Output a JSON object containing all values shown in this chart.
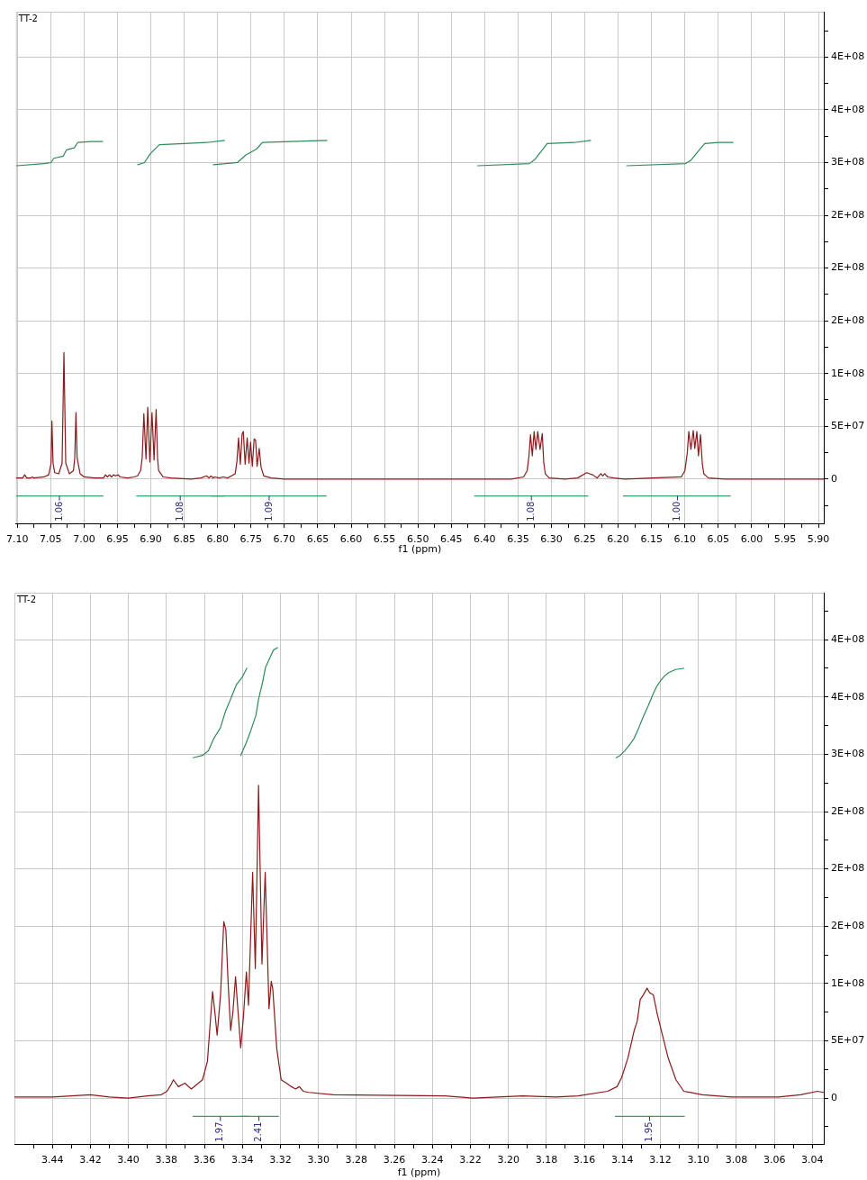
{
  "chart_data": [
    {
      "type": "line",
      "title": "TT-2",
      "xlabel": "f1 (ppm)",
      "grid": true,
      "xlim": [
        7.102,
        5.892
      ],
      "ylim": [
        -42000000.0,
        443000000.0
      ],
      "xticks": [
        {
          "value": 7.1,
          "label": "7.10"
        },
        {
          "value": 7.075,
          "label": null
        },
        {
          "value": 7.05,
          "label": "7.05"
        },
        {
          "value": 7.025,
          "label": null
        },
        {
          "value": 7.0,
          "label": "7.00"
        },
        {
          "value": 6.975,
          "label": null
        },
        {
          "value": 6.95,
          "label": "6.95"
        },
        {
          "value": 6.925,
          "label": null
        },
        {
          "value": 6.9,
          "label": "6.90"
        },
        {
          "value": 6.875,
          "label": null
        },
        {
          "value": 6.85,
          "label": "6.85"
        },
        {
          "value": 6.825,
          "label": null
        },
        {
          "value": 6.8,
          "label": "6.80"
        },
        {
          "value": 6.775,
          "label": null
        },
        {
          "value": 6.75,
          "label": "6.75"
        },
        {
          "value": 6.725,
          "label": null
        },
        {
          "value": 6.7,
          "label": "6.70"
        },
        {
          "value": 6.675,
          "label": null
        },
        {
          "value": 6.65,
          "label": "6.65"
        },
        {
          "value": 6.625,
          "label": null
        },
        {
          "value": 6.6,
          "label": "6.60"
        },
        {
          "value": 6.575,
          "label": null
        },
        {
          "value": 6.55,
          "label": "6.55"
        },
        {
          "value": 6.525,
          "label": null
        },
        {
          "value": 6.5,
          "label": "6.50"
        },
        {
          "value": 6.475,
          "label": null
        },
        {
          "value": 6.45,
          "label": "6.45"
        },
        {
          "value": 6.425,
          "label": null
        },
        {
          "value": 6.4,
          "label": "6.40"
        },
        {
          "value": 6.375,
          "label": null
        },
        {
          "value": 6.35,
          "label": "6.35"
        },
        {
          "value": 6.325,
          "label": null
        },
        {
          "value": 6.3,
          "label": "6.30"
        },
        {
          "value": 6.275,
          "label": null
        },
        {
          "value": 6.25,
          "label": "6.25"
        },
        {
          "value": 6.225,
          "label": null
        },
        {
          "value": 6.2,
          "label": "6.20"
        },
        {
          "value": 6.175,
          "label": null
        },
        {
          "value": 6.15,
          "label": "6.15"
        },
        {
          "value": 6.125,
          "label": null
        },
        {
          "value": 6.1,
          "label": "6.10"
        },
        {
          "value": 6.075,
          "label": null
        },
        {
          "value": 6.05,
          "label": "6.05"
        },
        {
          "value": 6.025,
          "label": null
        },
        {
          "value": 6.0,
          "label": "6.00"
        },
        {
          "value": 5.975,
          "label": null
        },
        {
          "value": 5.95,
          "label": "5.95"
        },
        {
          "value": 5.925,
          "label": null
        },
        {
          "value": 5.9,
          "label": "5.90"
        }
      ],
      "yticks": [
        {
          "value": -25000000.0,
          "label": null
        },
        0,
        {
          "value": 25000000.0,
          "label": null
        },
        {
          "value": 50000000.0,
          "label": "5E+07"
        },
        {
          "value": 75000000.0,
          "label": null
        },
        {
          "value": 100000000.0,
          "label": "1E+08"
        },
        {
          "value": 125000000.0,
          "label": null
        },
        {
          "value": 150000000.0,
          "label": "2E+08"
        },
        {
          "value": 175000000.0,
          "label": null
        },
        {
          "value": 200000000.0,
          "label": "2E+08"
        },
        {
          "value": 225000000.0,
          "label": null
        },
        {
          "value": 250000000.0,
          "label": "2E+08"
        },
        {
          "value": 275000000.0,
          "label": null
        },
        {
          "value": 300000000.0,
          "label": "3E+08"
        },
        {
          "value": 325000000.0,
          "label": null
        },
        {
          "value": 350000000.0,
          "label": "4E+08"
        },
        {
          "value": 375000000.0,
          "label": null
        },
        {
          "value": 400000000.0,
          "label": "4E+08"
        },
        {
          "value": 425000000.0,
          "label": null
        }
      ],
      "series": [
        {
          "type": "line",
          "color": "#8b1a1a",
          "x": [
            7.102,
            7.092,
            7.089,
            7.086,
            7.08,
            7.078,
            7.075,
            7.06,
            7.053,
            7.0495,
            7.0482,
            7.0465,
            7.044,
            7.038,
            7.033,
            7.0302,
            7.0275,
            7.022,
            7.016,
            7.014,
            7.0122,
            7.0105,
            7.006,
            7.0,
            6.985,
            6.971,
            6.968,
            6.965,
            6.962,
            6.959,
            6.956,
            6.953,
            6.949,
            6.946,
            6.935,
            6.925,
            6.92,
            6.9154,
            6.913,
            6.9105,
            6.9073,
            6.9047,
            6.9015,
            6.8983,
            6.8952,
            6.8921,
            6.89,
            6.8884,
            6.8817,
            6.87,
            6.84,
            6.825,
            6.8165,
            6.813,
            6.8097,
            6.807,
            6.8043,
            6.798,
            6.7917,
            6.785,
            6.7737,
            6.771,
            6.7687,
            6.766,
            6.7633,
            6.7615,
            6.7588,
            6.7557,
            6.753,
            6.7507,
            6.748,
            6.7453,
            6.7431,
            6.7409,
            6.7377,
            6.7349,
            6.7309,
            6.7197,
            6.7,
            6.6,
            6.5,
            6.4,
            6.36,
            6.3417,
            6.3363,
            6.3336,
            6.3313,
            6.3286,
            6.3259,
            6.3232,
            6.3205,
            6.317,
            6.3137,
            6.3115,
            6.3092,
            6.3034,
            6.28,
            6.2607,
            6.2472,
            6.2427,
            6.2381,
            6.2314,
            6.226,
            6.223,
            6.2202,
            6.2157,
            6.2067,
            6.19,
            6.1054,
            6.1,
            6.0964,
            6.0942,
            6.091,
            6.0875,
            6.0852,
            6.0821,
            6.0798,
            6.0767,
            6.0739,
            6.0717,
            6.0649,
            6.04,
            5.95,
            5.892
          ],
          "values": [
            1000000.0,
            1000000.0,
            4000000.0,
            1000000.0,
            1000000.0,
            2000000.0,
            1000000.0,
            2000000.0,
            4000000.0,
            15000000.0,
            55000000.0,
            15000000.0,
            6000000.0,
            5000000.0,
            15000000.0,
            120000000.0,
            15000000.0,
            5000000.0,
            8000000.0,
            20000000.0,
            63000000.0,
            20000000.0,
            5000000.0,
            2000000.0,
            1000000.0,
            1000000.0,
            4000000.0,
            2000000.0,
            4000000.0,
            2000000.0,
            4000000.0,
            3000000.0,
            4000000.0,
            2000000.0,
            1000000.0,
            2000000.0,
            3000000.0,
            8000000.0,
            20000000.0,
            62000000.0,
            19000000.0,
            68000000.0,
            16000000.0,
            63000000.0,
            18000000.0,
            66000000.0,
            20000000.0,
            8000000.0,
            2000000.0,
            1000000.0,
            0,
            1000000.0,
            3000000.0,
            1000000.0,
            3000000.0,
            1000000.0,
            2000000.0,
            1000000.0,
            2000000.0,
            1000000.0,
            5000000.0,
            17000000.0,
            39000000.0,
            14000000.0,
            43000000.0,
            45000000.0,
            14000000.0,
            39000000.0,
            15000000.0,
            35000000.0,
            12000000.0,
            38000000.0,
            37000000.0,
            12000000.0,
            29000000.0,
            11000000.0,
            3000000.0,
            1000000.0,
            0,
            0,
            0,
            0,
            0,
            2000000.0,
            8000000.0,
            22000000.0,
            42000000.0,
            22000000.0,
            45000000.0,
            28000000.0,
            45000000.0,
            28000000.0,
            43000000.0,
            16000000.0,
            5000000.0,
            1000000.0,
            0,
            1000000.0,
            6000000.0,
            5000000.0,
            4000000.0,
            1000000.0,
            5000000.0,
            3000000.0,
            5000000.0,
            2000000.0,
            1000000.0,
            0,
            2000000.0,
            8000000.0,
            25000000.0,
            45000000.0,
            28000000.0,
            46000000.0,
            29000000.0,
            45000000.0,
            22000000.0,
            42000000.0,
            14000000.0,
            5000000.0,
            1000000.0,
            0,
            0,
            0
          ]
        },
        {
          "type": "line",
          "color": "#2e8b57",
          "x": [
            7.101,
            7.06,
            7.0496,
            7.0456,
            7.0314,
            7.0264,
            7.0147,
            7.0097,
            6.99,
            6.9722
          ],
          "values": [
            297000000.0,
            299000000.0,
            300000000.0,
            304000000.0,
            306000000.0,
            312000000.0,
            314000000.0,
            319000000.0,
            320000000.0,
            320000000.0
          ]
        },
        {
          "type": "line",
          "color": "#2e8b57",
          "x": [
            6.9196,
            6.9096,
            6.9014,
            6.8872,
            6.8497,
            6.8163,
            6.7898
          ],
          "values": [
            298000000.0,
            300000000.0,
            308000000.0,
            317000000.0,
            318000000.0,
            319000000.0,
            321000000.0
          ]
        },
        {
          "type": "line",
          "color": "#2e8b57",
          "x": [
            6.8064,
            6.7706,
            6.758,
            6.7413,
            6.733,
            6.6913,
            6.6364
          ],
          "values": [
            298000000.0,
            300000000.0,
            307000000.0,
            313000000.0,
            319000000.0,
            320000000.0,
            321000000.0
          ]
        },
        {
          "type": "line",
          "color": "#2e8b57",
          "x": [
            6.4105,
            6.333,
            6.3247,
            6.3063,
            6.2663,
            6.2413
          ],
          "values": [
            297000000.0,
            299000000.0,
            303000000.0,
            318000000.0,
            319000000.0,
            321000000.0
          ]
        },
        {
          "type": "line",
          "color": "#2e8b57",
          "x": [
            6.1872,
            6.0996,
            6.0914,
            6.0705,
            6.0496,
            6.0281
          ],
          "values": [
            297000000.0,
            299000000.0,
            302000000.0,
            318000000.0,
            319000000.0,
            319000000.0
          ]
        },
        {
          "type": "line",
          "color": "#3c9e5e",
          "x": [
            7.102,
            6.9717
          ],
          "values": [
            -16000000.0,
            -16000000.0
          ]
        },
        {
          "type": "line",
          "color": "#3c9e5e",
          "x": [
            6.9213,
            6.7908
          ],
          "values": [
            -16000000.0,
            -16000000.0
          ]
        },
        {
          "type": "line",
          "color": "#3c9e5e",
          "x": [
            6.8088,
            6.6373
          ],
          "values": [
            -16000000.0,
            -16000000.0
          ]
        },
        {
          "type": "line",
          "color": "#3c9e5e",
          "x": [
            6.415,
            6.2454
          ],
          "values": [
            -16000000.0,
            -16000000.0
          ]
        },
        {
          "type": "line",
          "color": "#3c9e5e",
          "x": [
            6.1922,
            6.0321
          ],
          "values": [
            -16000000.0,
            -16000000.0
          ]
        }
      ],
      "annotations": [
        {
          "text": "1.06",
          "x": 7.037,
          "y": -16000000.0
        },
        {
          "text": "1.08",
          "x": 6.856,
          "y": -16000000.0
        },
        {
          "text": "1.09",
          "x": 6.7228,
          "y": -16000000.0
        },
        {
          "text": "1.08",
          "x": 6.33,
          "y": -16000000.0
        },
        {
          "text": "1.00",
          "x": 6.1112,
          "y": -16000000.0
        }
      ]
    },
    {
      "type": "line",
      "title": "TT-2",
      "xlabel": "f1 (ppm)",
      "grid": true,
      "xlim": [
        3.46,
        3.034
      ],
      "ylim": [
        -40000000.0,
        441000000.0
      ],
      "xticks": [
        {
          "value": 3.45,
          "label": null
        },
        {
          "value": 3.44,
          "label": "3.44"
        },
        {
          "value": 3.43,
          "label": null
        },
        {
          "value": 3.42,
          "label": "3.42"
        },
        {
          "value": 3.41,
          "label": null
        },
        {
          "value": 3.4,
          "label": "3.40"
        },
        {
          "value": 3.39,
          "label": null
        },
        {
          "value": 3.38,
          "label": "3.38"
        },
        {
          "value": 3.37,
          "label": null
        },
        {
          "value": 3.36,
          "label": "3.36"
        },
        {
          "value": 3.35,
          "label": null
        },
        {
          "value": 3.34,
          "label": "3.34"
        },
        {
          "value": 3.33,
          "label": null
        },
        {
          "value": 3.32,
          "label": "3.32"
        },
        {
          "value": 3.31,
          "label": null
        },
        {
          "value": 3.3,
          "label": "3.30"
        },
        {
          "value": 3.29,
          "label": null
        },
        {
          "value": 3.28,
          "label": "3.28"
        },
        {
          "value": 3.27,
          "label": null
        },
        {
          "value": 3.26,
          "label": "3.26"
        },
        {
          "value": 3.25,
          "label": null
        },
        {
          "value": 3.24,
          "label": "3.24"
        },
        {
          "value": 3.23,
          "label": null
        },
        {
          "value": 3.22,
          "label": "3.22"
        },
        {
          "value": 3.21,
          "label": null
        },
        {
          "value": 3.2,
          "label": "3.20"
        },
        {
          "value": 3.19,
          "label": null
        },
        {
          "value": 3.18,
          "label": "3.18"
        },
        {
          "value": 3.17,
          "label": null
        },
        {
          "value": 3.16,
          "label": "3.16"
        },
        {
          "value": 3.15,
          "label": null
        },
        {
          "value": 3.14,
          "label": "3.14"
        },
        {
          "value": 3.13,
          "label": null
        },
        {
          "value": 3.12,
          "label": "3.12"
        },
        {
          "value": 3.11,
          "label": null
        },
        {
          "value": 3.1,
          "label": "3.10"
        },
        {
          "value": 3.09,
          "label": null
        },
        {
          "value": 3.08,
          "label": "3.08"
        },
        {
          "value": 3.07,
          "label": null
        },
        {
          "value": 3.06,
          "label": "3.06"
        },
        {
          "value": 3.05,
          "label": null
        },
        {
          "value": 3.04,
          "label": "3.04"
        }
      ],
      "yticks": [
        {
          "value": -25000000.0,
          "label": null
        },
        0,
        {
          "value": 25000000.0,
          "label": null
        },
        {
          "value": 50000000.0,
          "label": "5E+07"
        },
        {
          "value": 75000000.0,
          "label": null
        },
        {
          "value": 100000000.0,
          "label": "1E+08"
        },
        {
          "value": 125000000.0,
          "label": null
        },
        {
          "value": 150000000.0,
          "label": "2E+08"
        },
        {
          "value": 175000000.0,
          "label": null
        },
        {
          "value": 200000000.0,
          "label": "2E+08"
        },
        {
          "value": 225000000.0,
          "label": null
        },
        {
          "value": 250000000.0,
          "label": "2E+08"
        },
        {
          "value": 275000000.0,
          "label": null
        },
        {
          "value": 300000000.0,
          "label": "3E+08"
        },
        {
          "value": 325000000.0,
          "label": null
        },
        {
          "value": 350000000.0,
          "label": "4E+08"
        },
        {
          "value": 375000000.0,
          "label": null
        },
        {
          "value": 400000000.0,
          "label": "4E+08"
        },
        {
          "value": 425000000.0,
          "label": null
        }
      ],
      "series": [
        {
          "type": "line",
          "color": "#8b1a1a",
          "x": [
            3.46,
            3.44,
            3.43,
            3.42,
            3.41,
            3.4,
            3.39,
            3.3827,
            3.3797,
            3.3775,
            3.3763,
            3.3737,
            3.3703,
            3.3669,
            3.361,
            3.3584,
            3.3567,
            3.3557,
            3.3545,
            3.3533,
            3.3515,
            3.3498,
            3.3487,
            3.3475,
            3.3462,
            3.345,
            3.3436,
            3.3425,
            3.3409,
            3.3395,
            3.3379,
            3.3368,
            3.3346,
            3.3332,
            3.3315,
            3.3297,
            3.328,
            3.326,
            3.3248,
            3.324,
            3.3219,
            3.3196,
            3.3168,
            3.3142,
            3.312,
            3.31,
            3.308,
            3.3051,
            3.2919,
            3.2335,
            3.2188,
            3.1926,
            3.175,
            3.1633,
            3.1478,
            3.1428,
            3.1404,
            3.1371,
            3.1338,
            3.1322,
            3.1306,
            3.129,
            3.127,
            3.1257,
            3.1237,
            3.1216,
            3.1195,
            3.1159,
            3.1118,
            3.1077,
            3.0979,
            3.0827,
            3.0579,
            3.0462,
            3.0374,
            3.034
          ],
          "values": [
            1000000.0,
            1000000.0,
            2000000.0,
            3000000.0,
            1000000.0,
            0,
            2000000.0,
            3000000.0,
            6000000.0,
            12000000.0,
            16000000.0,
            10000000.0,
            13000000.0,
            8000000.0,
            16000000.0,
            32000000.0,
            71000000.0,
            93000000.0,
            75000000.0,
            55000000.0,
            90000000.0,
            154000000.0,
            147000000.0,
            100000000.0,
            59000000.0,
            75000000.0,
            106000000.0,
            80000000.0,
            44000000.0,
            70000000.0,
            110000000.0,
            81000000.0,
            197000000.0,
            113000000.0,
            273000000.0,
            117000000.0,
            197000000.0,
            78000000.0,
            102000000.0,
            95000000.0,
            43000000.0,
            16000000.0,
            13000000.0,
            10000000.0,
            8000000.0,
            10000000.0,
            6000000.0,
            5000000.0,
            3000000.0,
            2000000.0,
            0,
            2000000.0,
            1000000.0,
            2000000.0,
            6000000.0,
            10000000.0,
            18000000.0,
            35000000.0,
            59000000.0,
            67000000.0,
            86000000.0,
            90000000.0,
            96000000.0,
            92000000.0,
            90000000.0,
            73000000.0,
            59000000.0,
            35000000.0,
            16000000.0,
            6000000.0,
            3000000.0,
            1000000.0,
            1000000.0,
            3000000.0,
            6000000.0,
            5000000.0
          ]
        },
        {
          "type": "line",
          "color": "#2e8b57",
          "x": [
            3.366,
            3.361,
            3.3579,
            3.355,
            3.3516,
            3.349,
            3.346,
            3.3431,
            3.3402,
            3.3377
          ],
          "values": [
            297000000.0,
            299000000.0,
            303000000.0,
            314000000.0,
            323000000.0,
            337000000.0,
            349000000.0,
            361000000.0,
            367000000.0,
            375000000.0
          ]
        },
        {
          "type": "line",
          "color": "#2e8b57",
          "x": [
            3.3409,
            3.338,
            3.3355,
            3.3329,
            3.3315,
            3.3295,
            3.3278,
            3.3256,
            3.3236,
            3.3215
          ],
          "values": [
            299000000.0,
            310000000.0,
            321000000.0,
            334000000.0,
            348000000.0,
            362000000.0,
            376000000.0,
            384000000.0,
            391000000.0,
            393000000.0
          ]
        },
        {
          "type": "line",
          "color": "#2e8b57",
          "x": [
            3.1433,
            3.1412,
            3.1388,
            3.1363,
            3.1338,
            3.1314,
            3.129,
            3.1265,
            3.124,
            3.122,
            3.12,
            3.118,
            3.1159,
            3.112,
            3.1077
          ],
          "values": [
            297000000.0,
            299000000.0,
            303000000.0,
            308000000.0,
            314000000.0,
            323000000.0,
            333000000.0,
            342000000.0,
            352000000.0,
            359000000.0,
            364000000.0,
            368000000.0,
            371000000.0,
            374000000.0,
            375000000.0
          ]
        },
        {
          "type": "line",
          "color": "#3c9e5e",
          "x": [
            3.366,
            3.337
          ],
          "values": [
            -16000000.0,
            -16000000.0
          ]
        },
        {
          "type": "line",
          "color": "#3c9e5e",
          "x": [
            3.341,
            3.321
          ],
          "values": [
            -16000000.0,
            -16000000.0
          ]
        },
        {
          "type": "line",
          "color": "#3c9e5e",
          "x": [
            3.1437,
            3.1074
          ],
          "values": [
            -16000000.0,
            -16000000.0
          ]
        }
      ],
      "annotations": [
        {
          "text": "1.97",
          "x": 3.3516,
          "y": -16000000.0
        },
        {
          "text": "2.41",
          "x": 3.3313,
          "y": -16000000.0
        },
        {
          "text": "1.95",
          "x": 3.1257,
          "y": -16000000.0
        }
      ]
    }
  ]
}
